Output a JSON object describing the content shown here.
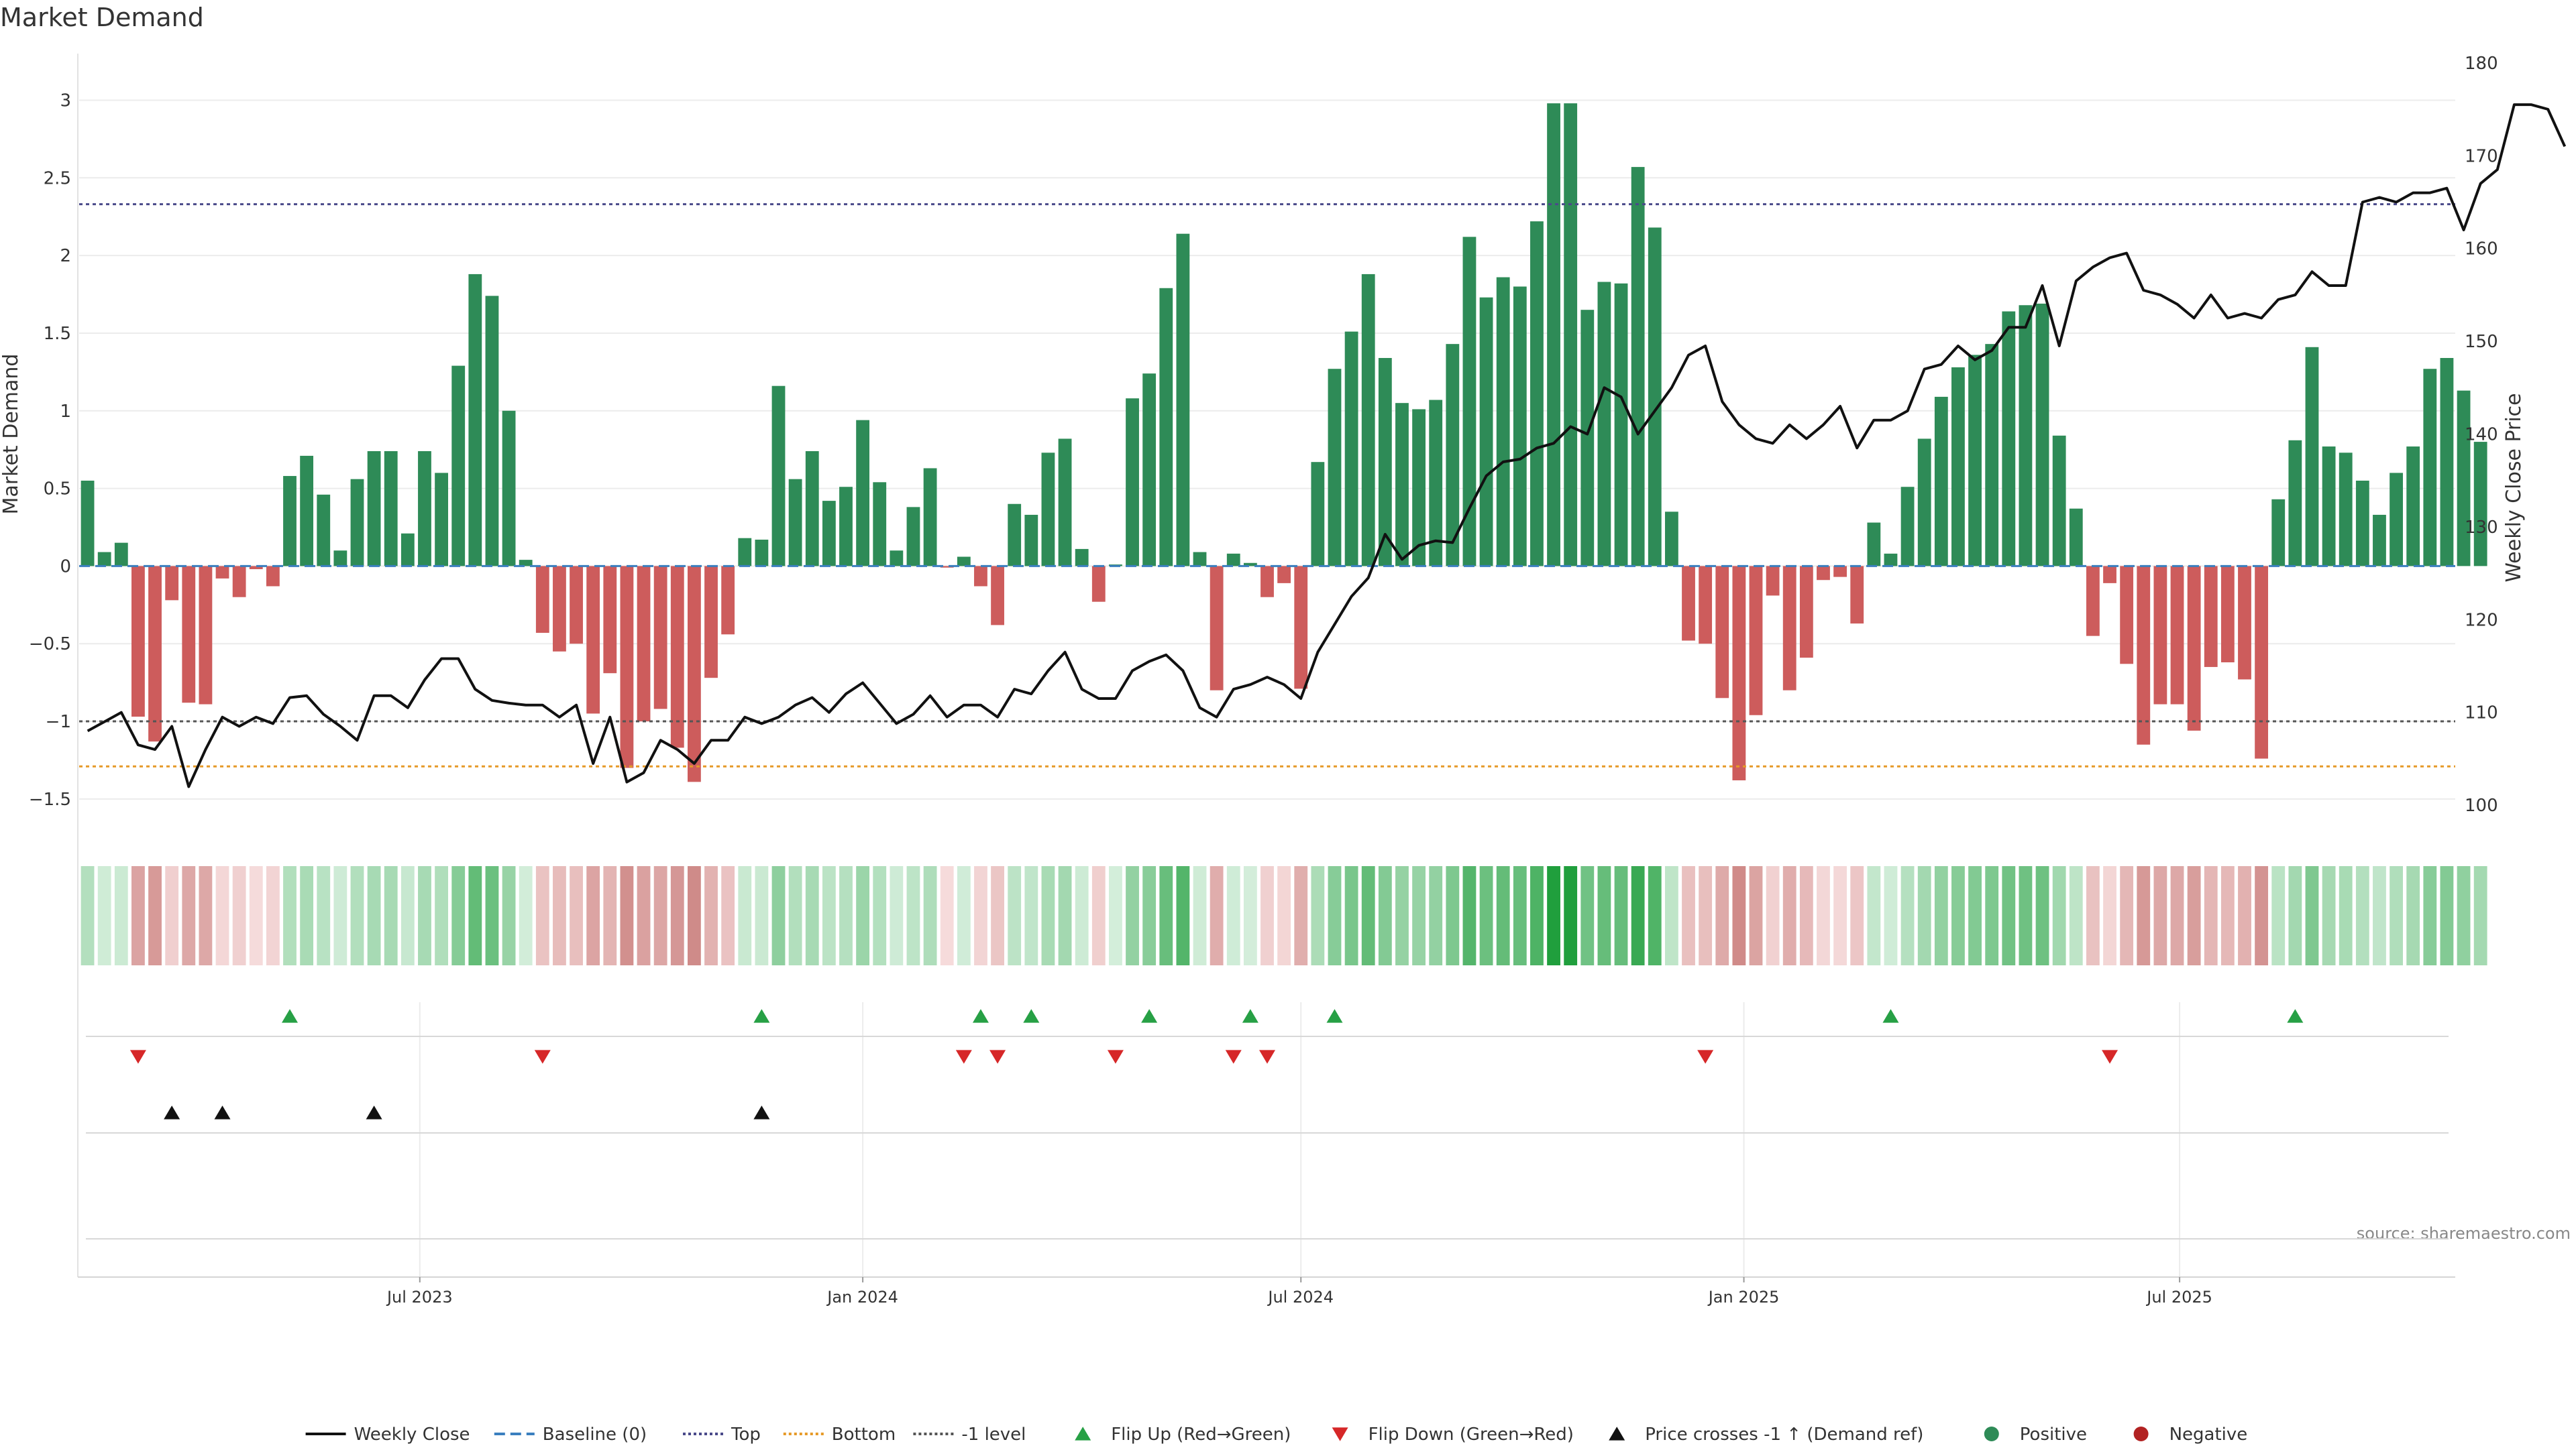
{
  "page": {
    "title": "Market Demand",
    "source": "source: sharemaestro.com"
  },
  "colors": {
    "positive": "#2e8b57",
    "negative": "#cd5c5c",
    "price_line": "#111111",
    "top_line": "#4a4a8a",
    "bottom_line": "#e69a28",
    "minus1_line": "#555555",
    "baseline": "#3b7fbf",
    "flip_up": "#27a045",
    "flip_down": "#d62728",
    "cross": "#111111"
  },
  "chart_data": {
    "type": "bar",
    "title": "Market Demand",
    "ylabel": "Market Demand",
    "y2label": "Weekly Close Price",
    "ylim": [
      -1.6,
      3.3
    ],
    "y2lim": [
      99,
      181
    ],
    "yticks": [
      3,
      2.5,
      2,
      1.5,
      1,
      0.5,
      0,
      -0.5,
      -1,
      -1.5
    ],
    "ytick_labels": [
      "3",
      "2.5",
      "2",
      "1.5",
      "1",
      "0.5",
      "0",
      "−0.5",
      "−1",
      "−1.5"
    ],
    "y2ticks": [
      180,
      170,
      160,
      150,
      140,
      130,
      120,
      110,
      100
    ],
    "y2tick_labels": [
      "180",
      "170",
      "160",
      "150",
      "140",
      "130",
      "120",
      "110",
      "100"
    ],
    "x_start": "2023-02-13",
    "x_interval_days": 7,
    "x_range": [
      "2023-02-13",
      "2025-10-20"
    ],
    "xticks": [
      {
        "date": "2023-07-01",
        "label": "Jul 2023"
      },
      {
        "date": "2024-01-01",
        "label": "Jan 2024"
      },
      {
        "date": "2024-07-01",
        "label": "Jul 2024"
      },
      {
        "date": "2025-01-01",
        "label": "Jan 2025"
      },
      {
        "date": "2025-07-01",
        "label": "Jul 2025"
      }
    ],
    "reference_lines": {
      "top": 2.33,
      "bottom": -1.29,
      "minus_one": -1.0,
      "baseline": 0
    },
    "series": [
      {
        "name": "Market Demand",
        "values": [
          0.55,
          0.09,
          0.15,
          -0.97,
          -1.13,
          -0.22,
          -0.88,
          -0.89,
          -0.08,
          -0.2,
          -0.02,
          -0.13,
          0.58,
          0.71,
          0.46,
          0.1,
          0.56,
          0.74,
          0.74,
          0.21,
          0.74,
          0.6,
          1.29,
          1.88,
          1.74,
          1.0,
          0.04,
          -0.43,
          -0.55,
          -0.5,
          -0.95,
          -0.69,
          -1.3,
          -1.0,
          -0.92,
          -1.17,
          -1.39,
          -0.72,
          -0.44,
          0.18,
          0.17,
          1.16,
          0.56,
          0.74,
          0.42,
          0.51,
          0.94,
          0.54,
          0.1,
          0.38,
          0.63,
          -0.01,
          0.06,
          -0.13,
          -0.38,
          0.4,
          0.33,
          0.73,
          0.82,
          0.11,
          -0.23,
          0.01,
          1.08,
          1.24,
          1.79,
          2.14,
          0.09,
          -0.8,
          0.08,
          0.02,
          -0.2,
          -0.11,
          -0.79,
          0.67,
          1.27,
          1.51,
          1.88,
          1.34,
          1.05,
          1.01,
          1.07,
          1.43,
          2.12,
          1.73,
          1.86,
          1.8,
          2.22,
          2.98,
          2.98,
          1.65,
          1.83,
          1.82,
          2.57,
          2.18,
          0.35,
          -0.48,
          -0.5,
          -0.85,
          -1.38,
          -0.96,
          -0.19,
          -0.8,
          -0.59,
          -0.09,
          -0.07,
          -0.37,
          0.28,
          0.08,
          0.51,
          0.82,
          1.09,
          1.28,
          1.36,
          1.43,
          1.64,
          1.68,
          1.69,
          0.84,
          0.37,
          -0.45,
          -0.11,
          -0.63,
          -1.15,
          -0.89,
          -0.89,
          -1.06,
          -0.65,
          -0.62,
          -0.73,
          -1.24,
          0.43,
          0.81,
          1.41,
          0.77,
          0.73,
          0.55,
          0.33,
          0.6,
          0.77,
          1.27,
          1.34,
          1.13,
          0.8
        ]
      },
      {
        "name": "Weekly Close",
        "values": [
          108.0,
          109.0,
          110.0,
          106.5,
          106.0,
          108.5,
          102.0,
          106.0,
          109.5,
          108.5,
          109.5,
          108.8,
          111.6,
          111.8,
          109.8,
          108.5,
          107.0,
          111.8,
          111.8,
          110.5,
          113.5,
          115.8,
          115.8,
          112.5,
          111.3,
          111.0,
          110.8,
          110.8,
          109.5,
          110.8,
          104.5,
          109.5,
          102.5,
          103.5,
          107.0,
          106.0,
          104.5,
          107.0,
          107.0,
          109.5,
          108.8,
          109.5,
          110.8,
          111.6,
          110.0,
          112.0,
          113.2,
          111.0,
          108.8,
          109.8,
          111.8,
          109.5,
          110.8,
          110.8,
          109.5,
          112.5,
          112.0,
          114.5,
          116.5,
          112.5,
          111.5,
          111.5,
          114.5,
          115.5,
          116.2,
          114.5,
          110.5,
          109.5,
          112.5,
          113.0,
          113.8,
          113.0,
          111.5,
          116.5,
          119.5,
          122.5,
          124.5,
          129.2,
          126.5,
          128.0,
          128.5,
          128.3,
          132.0,
          135.5,
          137.0,
          137.3,
          138.5,
          139.0,
          140.8,
          140.0,
          145.0,
          144.0,
          140.0,
          142.5,
          145.0,
          148.5,
          149.5,
          143.5,
          141.0,
          139.5,
          139.0,
          141.0,
          139.5,
          141.0,
          143.0,
          138.5,
          141.5,
          141.5,
          142.5,
          147.0,
          147.5,
          149.5,
          148.0,
          149.0,
          151.5,
          151.5,
          156.0,
          149.5,
          156.5,
          158.0,
          159.0,
          159.5,
          155.5,
          155.0,
          154.0,
          152.5,
          155.0,
          152.5,
          153.0,
          152.5,
          154.5,
          155.0,
          157.5,
          156.0,
          156.0,
          165.0,
          165.5,
          165.0,
          166.0,
          166.0,
          166.5,
          162.0,
          167.0,
          168.5,
          175.5,
          175.5,
          175.0,
          171.0
        ]
      }
    ],
    "events": {
      "flip_up_idx": [
        12,
        40,
        53,
        56,
        63,
        69,
        74,
        107,
        131
      ],
      "flip_down_idx": [
        3,
        27,
        52,
        54,
        61,
        68,
        70,
        96,
        120
      ],
      "cross_up_idx": [
        5,
        8,
        17,
        40
      ]
    },
    "legend": {
      "placement": "bottom-center",
      "items": [
        {
          "label": "Weekly Close",
          "kind": "line",
          "color": "#111111",
          "dash": "none"
        },
        {
          "label": "Baseline (0)",
          "kind": "line",
          "color": "#3b7fbf",
          "dash": "16,8"
        },
        {
          "label": "Top",
          "kind": "line",
          "color": "#4a4a8a",
          "dash": "4,4"
        },
        {
          "label": "Bottom",
          "kind": "line",
          "color": "#e69a28",
          "dash": "4,4"
        },
        {
          "label": "-1 level",
          "kind": "line",
          "color": "#555555",
          "dash": "4,4"
        },
        {
          "label": "Flip Up (Red→Green)",
          "kind": "tri-up",
          "color": "#27a045"
        },
        {
          "label": "Flip Down (Green→Red)",
          "kind": "tri-down",
          "color": "#d62728"
        },
        {
          "label": "Price crosses -1 ↑ (Demand ref)",
          "kind": "tri-up",
          "color": "#111111"
        },
        {
          "label": "Positive",
          "kind": "dot",
          "color": "#2e8b57"
        },
        {
          "label": "Negative",
          "kind": "dot",
          "color": "#b22222"
        }
      ]
    }
  }
}
